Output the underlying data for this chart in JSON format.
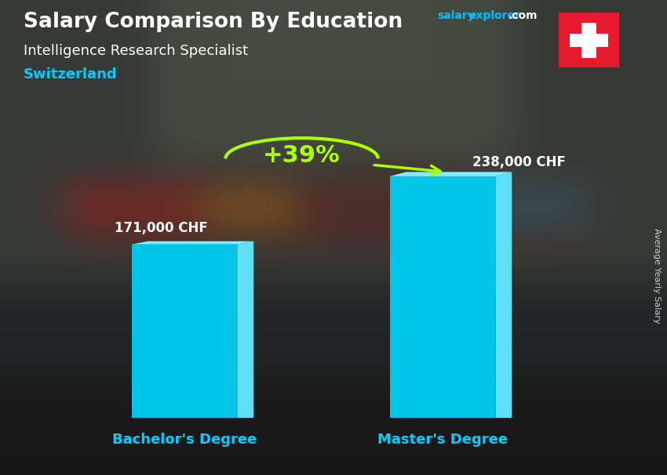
{
  "title_main": "Salary Comparison By Education",
  "title_sub": "Intelligence Research Specialist",
  "country": "Switzerland",
  "categories": [
    "Bachelor's Degree",
    "Master's Degree"
  ],
  "values": [
    171000,
    238000
  ],
  "value_labels": [
    "171,000 CHF",
    "238,000 CHF"
  ],
  "pct_label": "+39%",
  "ylabel_side": "Average Yearly Salary",
  "salary_text": "salary",
  "explorer_text": "explorer",
  "com_text": ".com",
  "salary_color": "#00bfff",
  "explorer_color": "#00bfff",
  "com_color": "#ffffff",
  "bar_face_color": "#00c4e8",
  "bar_right_color": "#5de0f5",
  "bar_top_color": "#80eeff",
  "bar_left_shadow": "#007a9e",
  "arrow_color": "#aaff00",
  "title_color": "#ffffff",
  "subtitle_color": "#ffffff",
  "country_color": "#00ccff",
  "value_label_color": "#ffffff",
  "xlabel_color": "#00cfff",
  "bg_color": "#4a4a50",
  "ylim": [
    0,
    290000
  ],
  "flag_red": "#e8192c",
  "flag_cross": "#ffffff",
  "bar_positions": [
    0.28,
    0.72
  ],
  "bar_width": 0.18
}
